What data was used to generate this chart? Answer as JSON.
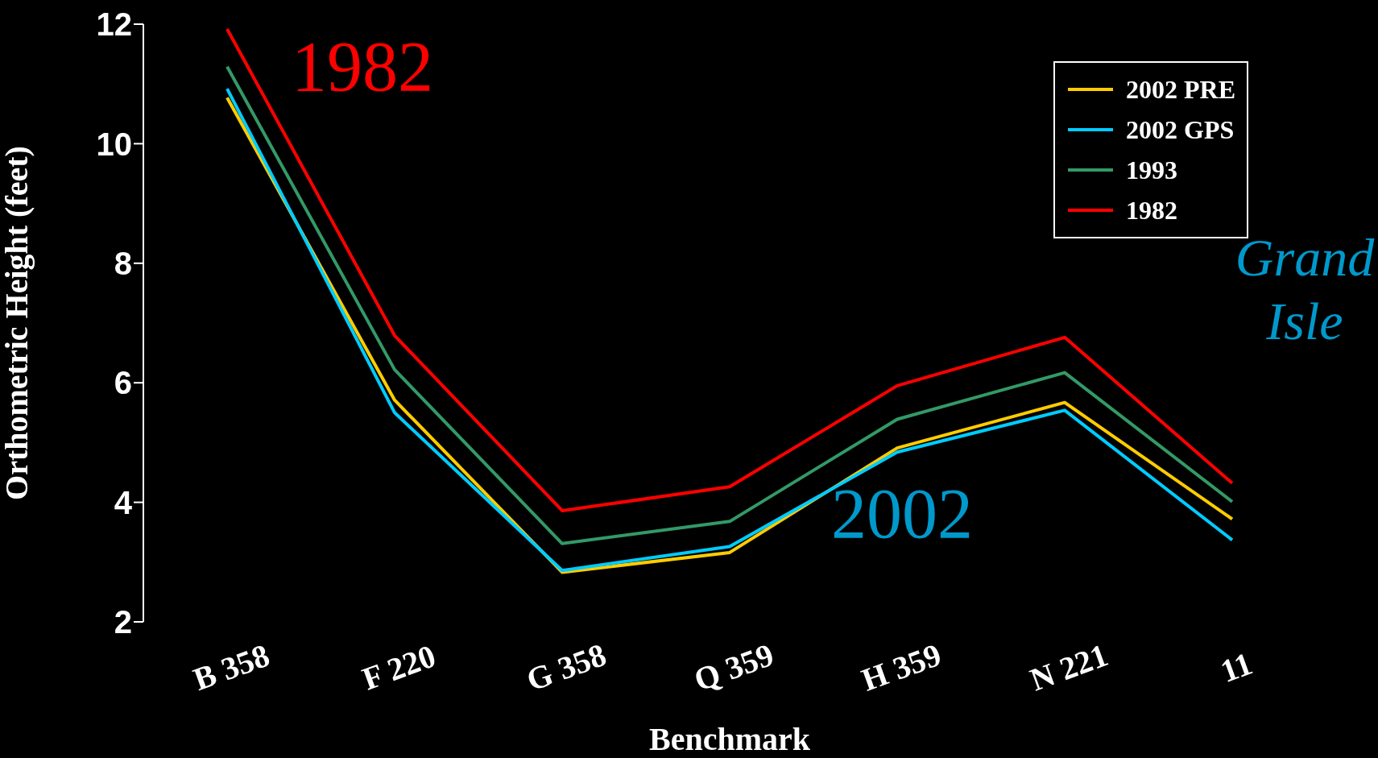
{
  "chart_data": {
    "type": "line",
    "xlabel": "Benchmark",
    "ylabel": "Orthometric Height (feet)",
    "categories": [
      "B 358",
      "F 220",
      "G 358",
      "Q 359",
      "H 359",
      "N 221",
      "11"
    ],
    "series": [
      {
        "name": "2002 PRE",
        "color": "#ffcc00",
        "values": [
          10.77,
          5.71,
          2.83,
          3.16,
          4.91,
          5.67,
          3.72
        ]
      },
      {
        "name": "2002 GPS",
        "color": "#00ccff",
        "values": [
          10.92,
          5.5,
          2.86,
          3.26,
          4.84,
          5.54,
          3.37
        ]
      },
      {
        "name": "1993",
        "color": "#339966",
        "values": [
          11.29,
          6.22,
          3.31,
          3.68,
          5.39,
          6.17,
          4.01
        ]
      },
      {
        "name": "1982",
        "color": "#ff0000",
        "values": [
          11.92,
          6.79,
          3.86,
          4.26,
          5.95,
          6.76,
          4.32
        ]
      }
    ],
    "ylim": [
      2,
      12
    ],
    "yticks": [
      2,
      4,
      6,
      8,
      10,
      12
    ],
    "legend": "top right",
    "marker": "none",
    "line_style": "solid",
    "annotations": [
      "1982",
      "2002",
      "Grand Isle"
    ]
  }
}
